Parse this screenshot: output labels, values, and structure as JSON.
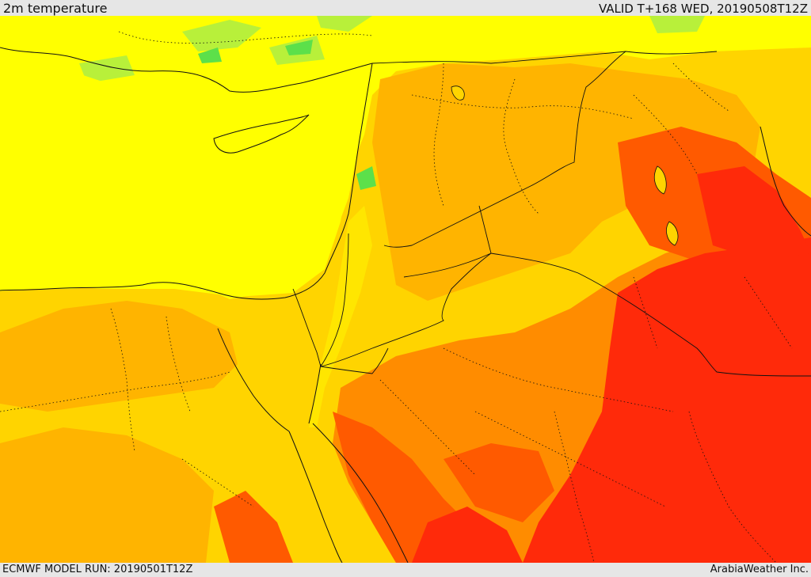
{
  "header": {
    "title": "2m temperature",
    "valid": "VALID T+168 WED, 20190508T12Z"
  },
  "footer": {
    "run": "ECMWF MODEL RUN: 20190501T12Z",
    "credit": "ArabiaWeather Inc."
  },
  "map": {
    "variable": "2m temperature",
    "region": "Eastern Mediterranean / Levant / Arabian Peninsula",
    "colors": {
      "green": "#5ce04a",
      "light_green": "#b8f03a",
      "yellow": "#ffff00",
      "gold": "#ffd400",
      "orange_light": "#ffb400",
      "orange": "#ff8c00",
      "orange_red": "#ff5a00",
      "red": "#ff2a0a"
    }
  }
}
